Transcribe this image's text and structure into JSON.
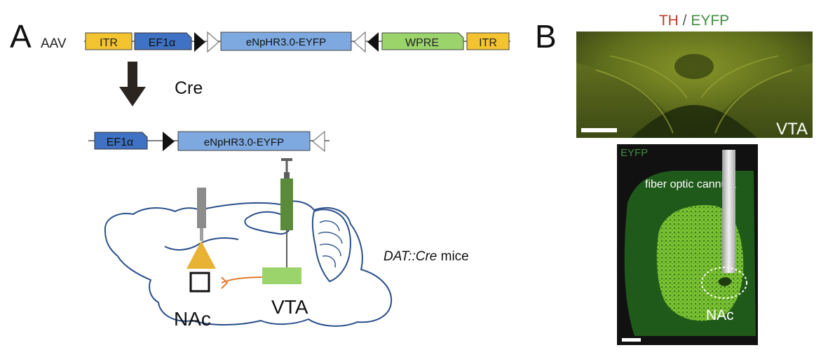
{
  "panel_a": {
    "letter": "A",
    "vector_label": "AAV",
    "top_construct": {
      "itr_left": "ITR",
      "promoter": "EF1α",
      "gene": "eNpHR3.0-EYFP",
      "wpre": "WPRE",
      "itr_right": "ITR"
    },
    "recombinase_label": "Cre",
    "bottom_construct": {
      "promoter": "EF1α",
      "gene": "eNpHR3.0-EYFP"
    },
    "mouse_label_italic": "DAT::Cre",
    "mouse_label_rest": " mice",
    "region_nac": "NAc",
    "region_vta": "VTA"
  },
  "panel_b": {
    "letter": "B",
    "top_title_th": "TH",
    "top_title_sep": " / ",
    "top_title_eyfp": "EYFP",
    "top_region": "VTA",
    "bottom_channel": "EYFP",
    "cannula_label": "fiber optic cannula",
    "bottom_region": "NAc"
  },
  "colors": {
    "itr": "#f4c430",
    "promoter": "#3f72c4",
    "gene": "#7ea9e0",
    "wpre": "#9ad46a",
    "brain_outline": "#2a4f8a",
    "nac_neuron": "#e8b335",
    "axon": "#e07a2e",
    "vta_box": "#9ad46a",
    "syringe": "#5a8a3a",
    "th_red": "#c0392b",
    "eyfp_green": "#3f8f3f"
  }
}
